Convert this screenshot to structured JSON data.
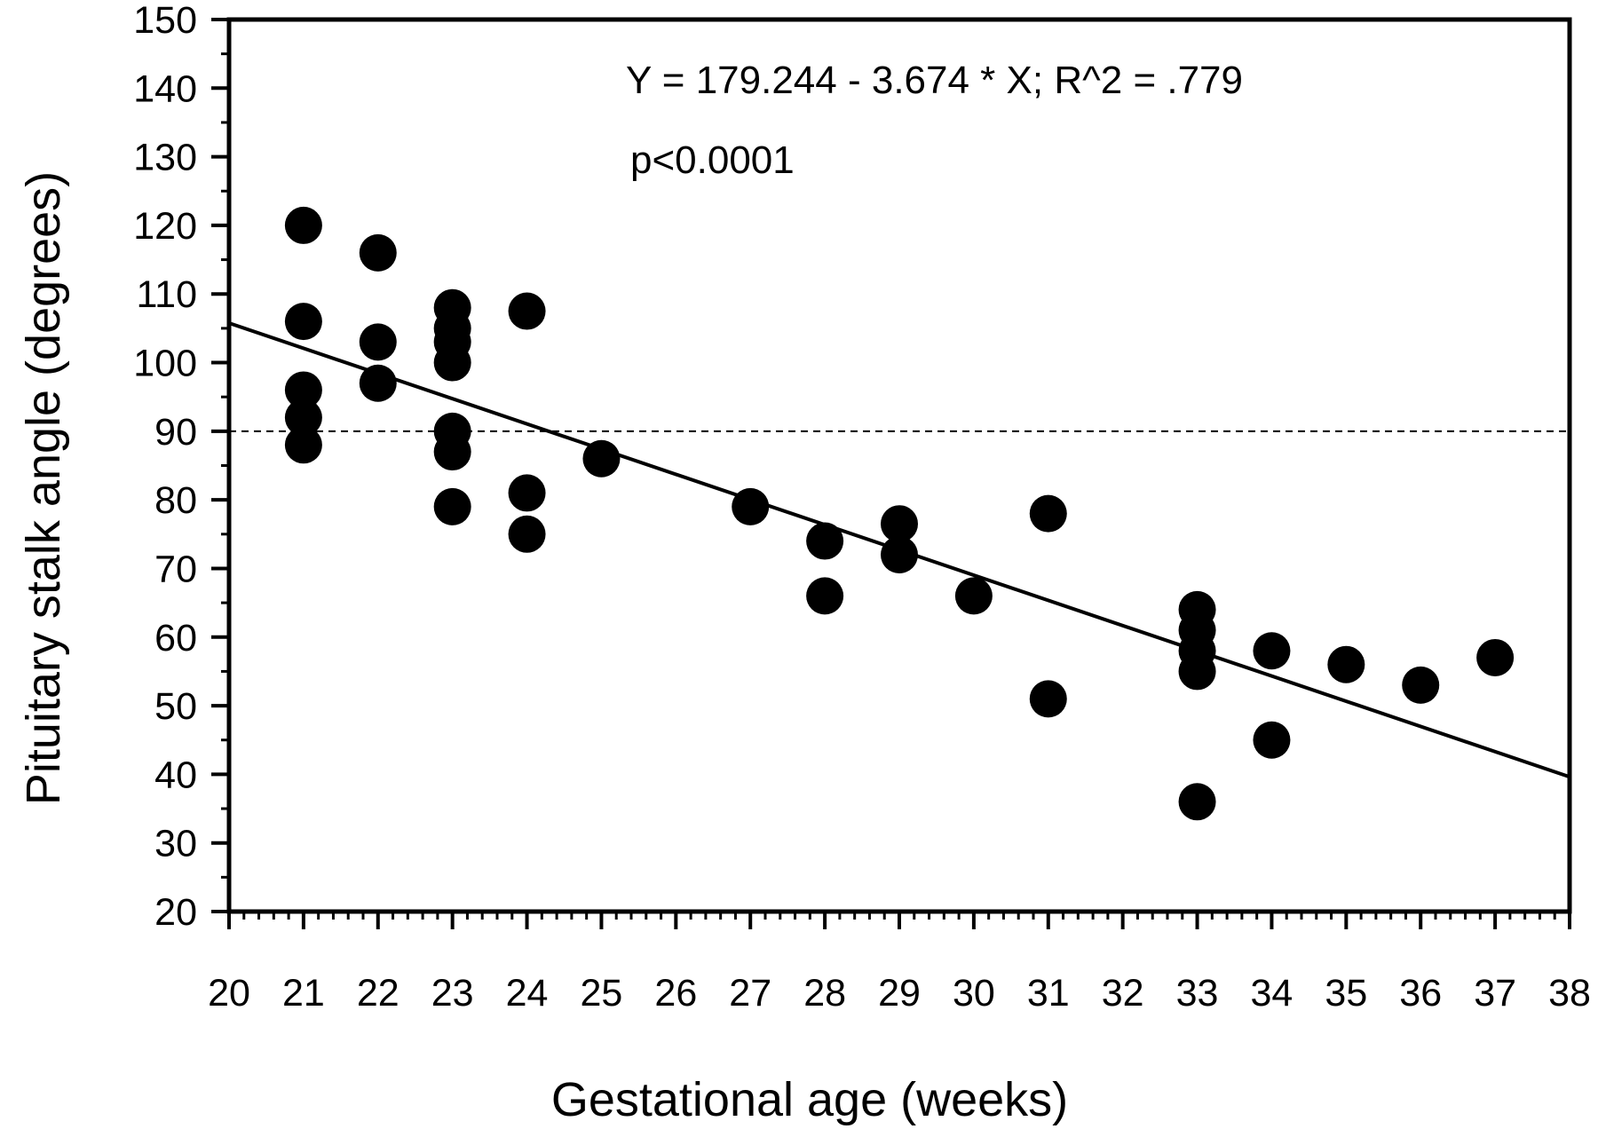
{
  "chart_data": {
    "type": "scatter",
    "xlabel": "Gestational age (weeks)",
    "ylabel": "Pituitary stalk angle (degrees)",
    "xlim": [
      20,
      38
    ],
    "ylim": [
      20,
      150
    ],
    "x_ticks": [
      "20",
      "21",
      "22",
      "23",
      "24",
      "25",
      "26",
      "27",
      "28",
      "29",
      "30",
      "31",
      "32",
      "33",
      "34",
      "35",
      "36",
      "37",
      "38"
    ],
    "y_ticks": [
      "20",
      "30",
      "40",
      "50",
      "60",
      "70",
      "80",
      "90",
      "100",
      "110",
      "120",
      "130",
      "140",
      "150"
    ],
    "annotations": {
      "equation": "Y  = 179.244 - 3.674 * X; R^2 = .779",
      "p_value": "p<0.0001"
    },
    "regression": {
      "intercept": 179.244,
      "slope": -3.674
    },
    "reference_line": {
      "y": 90,
      "style": "dashed"
    },
    "marker_color": "#000000",
    "grid": false,
    "series": [
      {
        "points": [
          [
            21,
            120
          ],
          [
            21,
            106
          ],
          [
            21,
            96
          ],
          [
            21,
            92
          ],
          [
            21,
            88
          ],
          [
            22,
            116
          ],
          [
            22,
            103
          ],
          [
            22,
            97
          ],
          [
            23,
            108
          ],
          [
            23,
            105
          ],
          [
            23,
            103
          ],
          [
            23,
            100
          ],
          [
            23,
            90
          ],
          [
            23,
            87
          ],
          [
            23,
            79
          ],
          [
            24,
            107.5
          ],
          [
            24,
            81
          ],
          [
            24,
            75
          ],
          [
            25,
            86
          ],
          [
            27,
            79
          ],
          [
            28,
            74
          ],
          [
            28,
            66
          ],
          [
            29,
            76.5
          ],
          [
            29,
            72
          ],
          [
            30,
            66
          ],
          [
            31,
            78
          ],
          [
            31,
            51
          ],
          [
            33,
            64
          ],
          [
            33,
            61
          ],
          [
            33,
            58
          ],
          [
            33,
            55
          ],
          [
            33,
            36
          ],
          [
            34,
            58
          ],
          [
            34,
            45
          ],
          [
            35,
            56
          ],
          [
            36,
            53
          ],
          [
            37,
            57
          ]
        ]
      }
    ]
  }
}
